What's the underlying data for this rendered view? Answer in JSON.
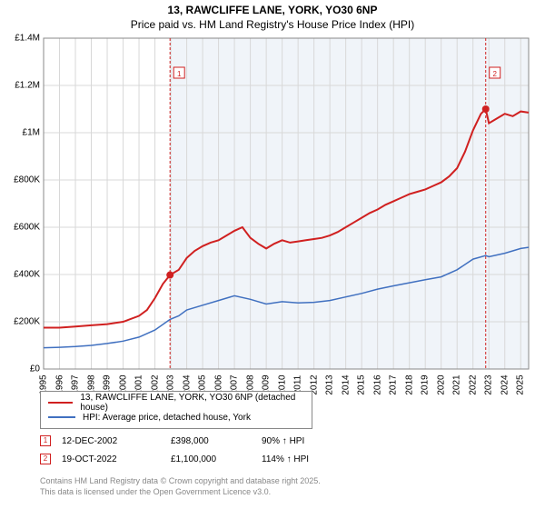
{
  "title_main": "13, RAWCLIFFE LANE, YORK, YO30 6NP",
  "title_sub": "Price paid vs. HM Land Registry's House Price Index (HPI)",
  "chart": {
    "type": "line",
    "x_min": 1995,
    "x_max": 2025.5,
    "y_min": 0,
    "y_max": 1400000,
    "x_ticks": [
      "1995",
      "1996",
      "1997",
      "1998",
      "1999",
      "2000",
      "2001",
      "2002",
      "2003",
      "2004",
      "2005",
      "2006",
      "2007",
      "2008",
      "2009",
      "2010",
      "2011",
      "2012",
      "2013",
      "2014",
      "2015",
      "2016",
      "2017",
      "2018",
      "2019",
      "2020",
      "2021",
      "2022",
      "2023",
      "2024",
      "2025"
    ],
    "y_ticks": [
      0,
      200000,
      400000,
      600000,
      800000,
      1000000,
      1200000,
      1400000
    ],
    "y_labels": [
      "£0",
      "£200K",
      "£400K",
      "£600K",
      "£800K",
      "£1M",
      "£1.2M",
      "£1.4M"
    ],
    "background_color": "#ffffff",
    "plot_fill_color": "#f0f4f9",
    "plot_fill_start": 2002.95,
    "grid_color": "#d8d8d8",
    "border_color": "#888888",
    "title_fontsize": 12,
    "tick_fontsize": 10,
    "series": [
      {
        "name": "property",
        "color": "#d02020",
        "width": 2,
        "points": [
          [
            1995,
            175000
          ],
          [
            1996,
            175000
          ],
          [
            1997,
            180000
          ],
          [
            1998,
            185000
          ],
          [
            1999,
            190000
          ],
          [
            2000,
            200000
          ],
          [
            2001,
            225000
          ],
          [
            2001.5,
            250000
          ],
          [
            2002,
            300000
          ],
          [
            2002.5,
            360000
          ],
          [
            2002.95,
            398000
          ],
          [
            2003.5,
            420000
          ],
          [
            2004,
            470000
          ],
          [
            2004.5,
            500000
          ],
          [
            2005,
            520000
          ],
          [
            2005.5,
            535000
          ],
          [
            2006,
            545000
          ],
          [
            2006.5,
            565000
          ],
          [
            2007,
            585000
          ],
          [
            2007.5,
            600000
          ],
          [
            2008,
            555000
          ],
          [
            2008.5,
            530000
          ],
          [
            2009,
            510000
          ],
          [
            2009.5,
            530000
          ],
          [
            2010,
            545000
          ],
          [
            2010.5,
            535000
          ],
          [
            2011,
            540000
          ],
          [
            2011.5,
            545000
          ],
          [
            2012,
            550000
          ],
          [
            2012.5,
            555000
          ],
          [
            2013,
            565000
          ],
          [
            2013.5,
            580000
          ],
          [
            2014,
            600000
          ],
          [
            2014.5,
            620000
          ],
          [
            2015,
            640000
          ],
          [
            2015.5,
            660000
          ],
          [
            2016,
            675000
          ],
          [
            2016.5,
            695000
          ],
          [
            2017,
            710000
          ],
          [
            2017.5,
            725000
          ],
          [
            2018,
            740000
          ],
          [
            2018.5,
            750000
          ],
          [
            2019,
            760000
          ],
          [
            2019.5,
            775000
          ],
          [
            2020,
            790000
          ],
          [
            2020.5,
            815000
          ],
          [
            2021,
            850000
          ],
          [
            2021.5,
            920000
          ],
          [
            2022,
            1010000
          ],
          [
            2022.5,
            1080000
          ],
          [
            2022.8,
            1100000
          ],
          [
            2023,
            1040000
          ],
          [
            2023.5,
            1060000
          ],
          [
            2024,
            1080000
          ],
          [
            2024.5,
            1070000
          ],
          [
            2025,
            1090000
          ],
          [
            2025.5,
            1085000
          ]
        ]
      },
      {
        "name": "hpi",
        "color": "#4070c0",
        "width": 1.5,
        "points": [
          [
            1995,
            90000
          ],
          [
            1996,
            92000
          ],
          [
            1997,
            95000
          ],
          [
            1998,
            100000
          ],
          [
            1999,
            108000
          ],
          [
            2000,
            118000
          ],
          [
            2001,
            135000
          ],
          [
            2002,
            165000
          ],
          [
            2002.95,
            210000
          ],
          [
            2003.5,
            225000
          ],
          [
            2004,
            250000
          ],
          [
            2005,
            270000
          ],
          [
            2006,
            290000
          ],
          [
            2007,
            310000
          ],
          [
            2008,
            295000
          ],
          [
            2009,
            275000
          ],
          [
            2010,
            285000
          ],
          [
            2011,
            280000
          ],
          [
            2012,
            282000
          ],
          [
            2013,
            290000
          ],
          [
            2014,
            305000
          ],
          [
            2015,
            320000
          ],
          [
            2016,
            338000
          ],
          [
            2017,
            352000
          ],
          [
            2018,
            365000
          ],
          [
            2019,
            378000
          ],
          [
            2020,
            390000
          ],
          [
            2021,
            420000
          ],
          [
            2022,
            465000
          ],
          [
            2022.8,
            480000
          ],
          [
            2023,
            475000
          ],
          [
            2024,
            490000
          ],
          [
            2025,
            510000
          ],
          [
            2025.5,
            515000
          ]
        ]
      }
    ],
    "markers": [
      {
        "n": "1",
        "x": 2002.95,
        "y": 398000,
        "label_y": 1250000
      },
      {
        "n": "2",
        "x": 2022.8,
        "y": 1100000,
        "label_y": 1250000
      }
    ]
  },
  "legend": {
    "items": [
      {
        "color": "#d02020",
        "width": 2,
        "label": "13, RAWCLIFFE LANE, YORK, YO30 6NP (detached house)"
      },
      {
        "color": "#4070c0",
        "width": 1.5,
        "label": "HPI: Average price, detached house, York"
      }
    ]
  },
  "sales": [
    {
      "n": "1",
      "date": "12-DEC-2002",
      "price": "£398,000",
      "pct": "90% ↑ HPI"
    },
    {
      "n": "2",
      "date": "19-OCT-2022",
      "price": "£1,100,000",
      "pct": "114% ↑ HPI"
    }
  ],
  "footer1": "Contains HM Land Registry data © Crown copyright and database right 2025.",
  "footer2": "This data is licensed under the Open Government Licence v3.0."
}
